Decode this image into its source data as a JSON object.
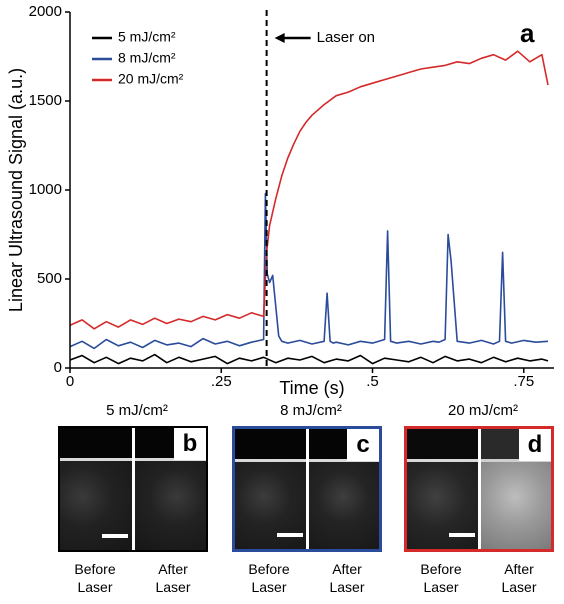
{
  "chart_data": {
    "type": "line",
    "panel_label": "a",
    "xlabel": "Time (s)",
    "ylabel": "Linear Ultrasound Signal (a.u.)",
    "xlim": [
      0,
      0.8
    ],
    "ylim": [
      0,
      2000
    ],
    "xticks": [
      0,
      0.25,
      0.5,
      0.75
    ],
    "xtick_labels": [
      "0",
      ".25",
      ".5",
      ".75"
    ],
    "yticks": [
      0,
      500,
      1000,
      1500,
      2000
    ],
    "ytick_labels": [
      "0",
      "500",
      "1000",
      "1500",
      "2000"
    ],
    "grid": false,
    "legend_position": "top-left",
    "annotation": {
      "text": "Laser on",
      "x": 0.325
    },
    "series": [
      {
        "name": "5 mJ/cm²",
        "color": "#000000",
        "x": [
          0.0,
          0.02,
          0.04,
          0.06,
          0.08,
          0.1,
          0.12,
          0.14,
          0.16,
          0.18,
          0.2,
          0.22,
          0.24,
          0.26,
          0.28,
          0.3,
          0.32,
          0.34,
          0.36,
          0.38,
          0.4,
          0.42,
          0.44,
          0.46,
          0.48,
          0.5,
          0.52,
          0.54,
          0.56,
          0.58,
          0.6,
          0.62,
          0.64,
          0.66,
          0.68,
          0.7,
          0.72,
          0.74,
          0.76,
          0.78,
          0.79
        ],
        "y": [
          45,
          70,
          30,
          60,
          25,
          55,
          40,
          75,
          30,
          60,
          35,
          50,
          65,
          25,
          55,
          40,
          60,
          30,
          55,
          45,
          65,
          30,
          50,
          40,
          70,
          25,
          55,
          45,
          35,
          60,
          30,
          65,
          40,
          50,
          30,
          60,
          35,
          55,
          40,
          50,
          40
        ]
      },
      {
        "name": "8 mJ/cm²",
        "color": "#2b4b9b",
        "x": [
          0.0,
          0.02,
          0.04,
          0.06,
          0.08,
          0.1,
          0.12,
          0.14,
          0.16,
          0.18,
          0.2,
          0.22,
          0.24,
          0.26,
          0.28,
          0.3,
          0.32,
          0.323,
          0.326,
          0.33,
          0.335,
          0.34,
          0.345,
          0.35,
          0.36,
          0.38,
          0.4,
          0.42,
          0.425,
          0.43,
          0.435,
          0.44,
          0.46,
          0.48,
          0.5,
          0.52,
          0.525,
          0.53,
          0.535,
          0.54,
          0.56,
          0.58,
          0.6,
          0.61,
          0.62,
          0.625,
          0.63,
          0.64,
          0.66,
          0.68,
          0.7,
          0.71,
          0.715,
          0.72,
          0.73,
          0.75,
          0.77,
          0.79
        ],
        "y": [
          120,
          150,
          110,
          160,
          125,
          145,
          115,
          155,
          130,
          140,
          120,
          165,
          135,
          150,
          125,
          145,
          160,
          980,
          530,
          480,
          520,
          350,
          180,
          150,
          140,
          155,
          135,
          150,
          420,
          150,
          140,
          145,
          130,
          150,
          140,
          160,
          770,
          150,
          145,
          140,
          150,
          135,
          150,
          145,
          160,
          750,
          600,
          150,
          140,
          155,
          135,
          150,
          650,
          150,
          140,
          155,
          145,
          150
        ]
      },
      {
        "name": "20 mJ/cm²",
        "color": "#d42a2a",
        "x": [
          0.0,
          0.02,
          0.04,
          0.06,
          0.08,
          0.1,
          0.12,
          0.14,
          0.16,
          0.18,
          0.2,
          0.22,
          0.24,
          0.26,
          0.28,
          0.3,
          0.32,
          0.325,
          0.33,
          0.34,
          0.35,
          0.36,
          0.37,
          0.38,
          0.39,
          0.4,
          0.42,
          0.44,
          0.46,
          0.48,
          0.5,
          0.52,
          0.54,
          0.56,
          0.58,
          0.6,
          0.62,
          0.64,
          0.66,
          0.68,
          0.7,
          0.72,
          0.74,
          0.76,
          0.78,
          0.79
        ],
        "y": [
          240,
          270,
          220,
          260,
          230,
          270,
          245,
          280,
          250,
          275,
          260,
          290,
          270,
          300,
          280,
          310,
          290,
          650,
          800,
          950,
          1080,
          1180,
          1260,
          1330,
          1380,
          1420,
          1480,
          1530,
          1550,
          1580,
          1600,
          1620,
          1640,
          1660,
          1680,
          1690,
          1700,
          1720,
          1710,
          1740,
          1760,
          1730,
          1780,
          1720,
          1760,
          1590
        ]
      }
    ]
  },
  "panels": [
    {
      "title": "5 mJ/cm²",
      "letter": "b",
      "before": "Before\nLaser",
      "after": "After\nLaser",
      "frame_color": "#000000",
      "before_brightness": "low",
      "after_brightness": "low"
    },
    {
      "title": "8 mJ/cm²",
      "letter": "c",
      "before": "Before\nLaser",
      "after": "After\nLaser",
      "frame_color": "#2b4b9b",
      "before_brightness": "low",
      "after_brightness": "low"
    },
    {
      "title": "20 mJ/cm²",
      "letter": "d",
      "before": "Before\nLaser",
      "after": "After\nLaser",
      "frame_color": "#d42a2a",
      "before_brightness": "low",
      "after_brightness": "high"
    }
  ]
}
